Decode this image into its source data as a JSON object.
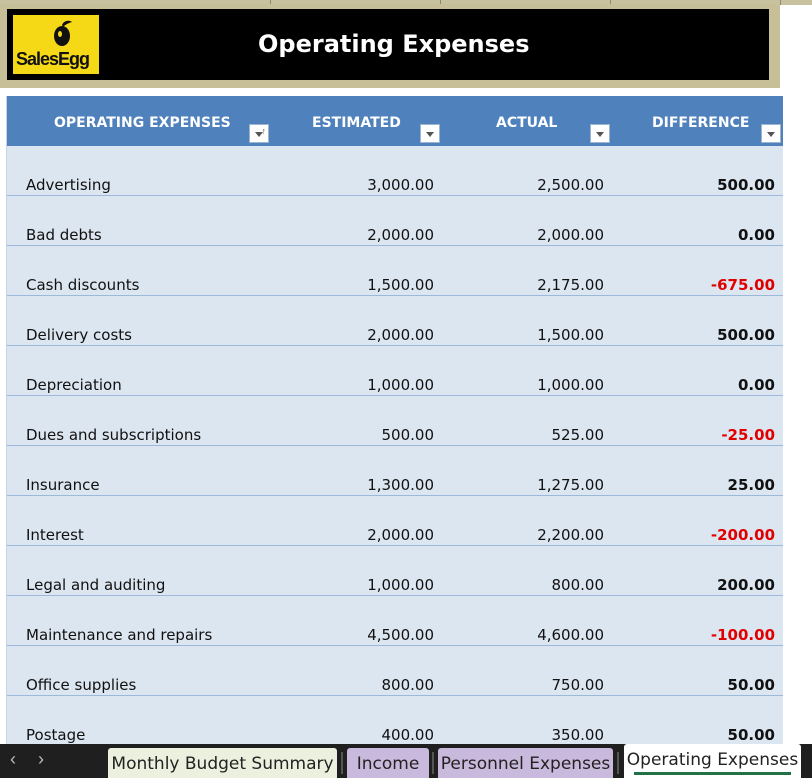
{
  "banner": {
    "logo_text": "SalesEgg",
    "title": "Operating Expenses"
  },
  "table": {
    "headers": {
      "name": "OPERATING EXPENSES",
      "estimated": "ESTIMATED",
      "actual": "ACTUAL",
      "difference": "DIFFERENCE"
    },
    "rows": [
      {
        "name": "Advertising",
        "estimated": "3,000.00",
        "actual": "2,500.00",
        "difference": "500.00"
      },
      {
        "name": "Bad debts",
        "estimated": "2,000.00",
        "actual": "2,000.00",
        "difference": "0.00"
      },
      {
        "name": "Cash discounts",
        "estimated": "1,500.00",
        "actual": "2,175.00",
        "difference": "-675.00"
      },
      {
        "name": "Delivery costs",
        "estimated": "2,000.00",
        "actual": "1,500.00",
        "difference": "500.00"
      },
      {
        "name": "Depreciation",
        "estimated": "1,000.00",
        "actual": "1,000.00",
        "difference": "0.00"
      },
      {
        "name": "Dues and subscriptions",
        "estimated": "500.00",
        "actual": "525.00",
        "difference": "-25.00"
      },
      {
        "name": "Insurance",
        "estimated": "1,300.00",
        "actual": "1,275.00",
        "difference": "25.00"
      },
      {
        "name": "Interest",
        "estimated": "2,000.00",
        "actual": "2,200.00",
        "difference": "-200.00"
      },
      {
        "name": "Legal and auditing",
        "estimated": "1,000.00",
        "actual": "800.00",
        "difference": "200.00"
      },
      {
        "name": "Maintenance and repairs",
        "estimated": "4,500.00",
        "actual": "4,600.00",
        "difference": "-100.00"
      },
      {
        "name": "Office supplies",
        "estimated": "800.00",
        "actual": "750.00",
        "difference": "50.00"
      },
      {
        "name": "Postage",
        "estimated": "400.00",
        "actual": "350.00",
        "difference": "50.00"
      }
    ]
  },
  "sheet_tabs": [
    {
      "label": "Monthly Budget Summary",
      "color": "#ebf1de",
      "active": false
    },
    {
      "label": "Income",
      "color": "#c9b9dc",
      "active": false
    },
    {
      "label": "Personnel Expenses",
      "color": "#c9b9dc",
      "active": false
    },
    {
      "label": "Operating Expenses",
      "color": "#ffffff",
      "active": true
    }
  ],
  "nav": {
    "prev_icon": "chevron-left-icon",
    "next_icon": "chevron-right-icon"
  },
  "colors": {
    "header_blue": "#4f81bd",
    "row_fill": "#dce6f1",
    "negative": "#e00000",
    "banner_bg": "#000000",
    "logo_yellow": "#f5d916"
  }
}
